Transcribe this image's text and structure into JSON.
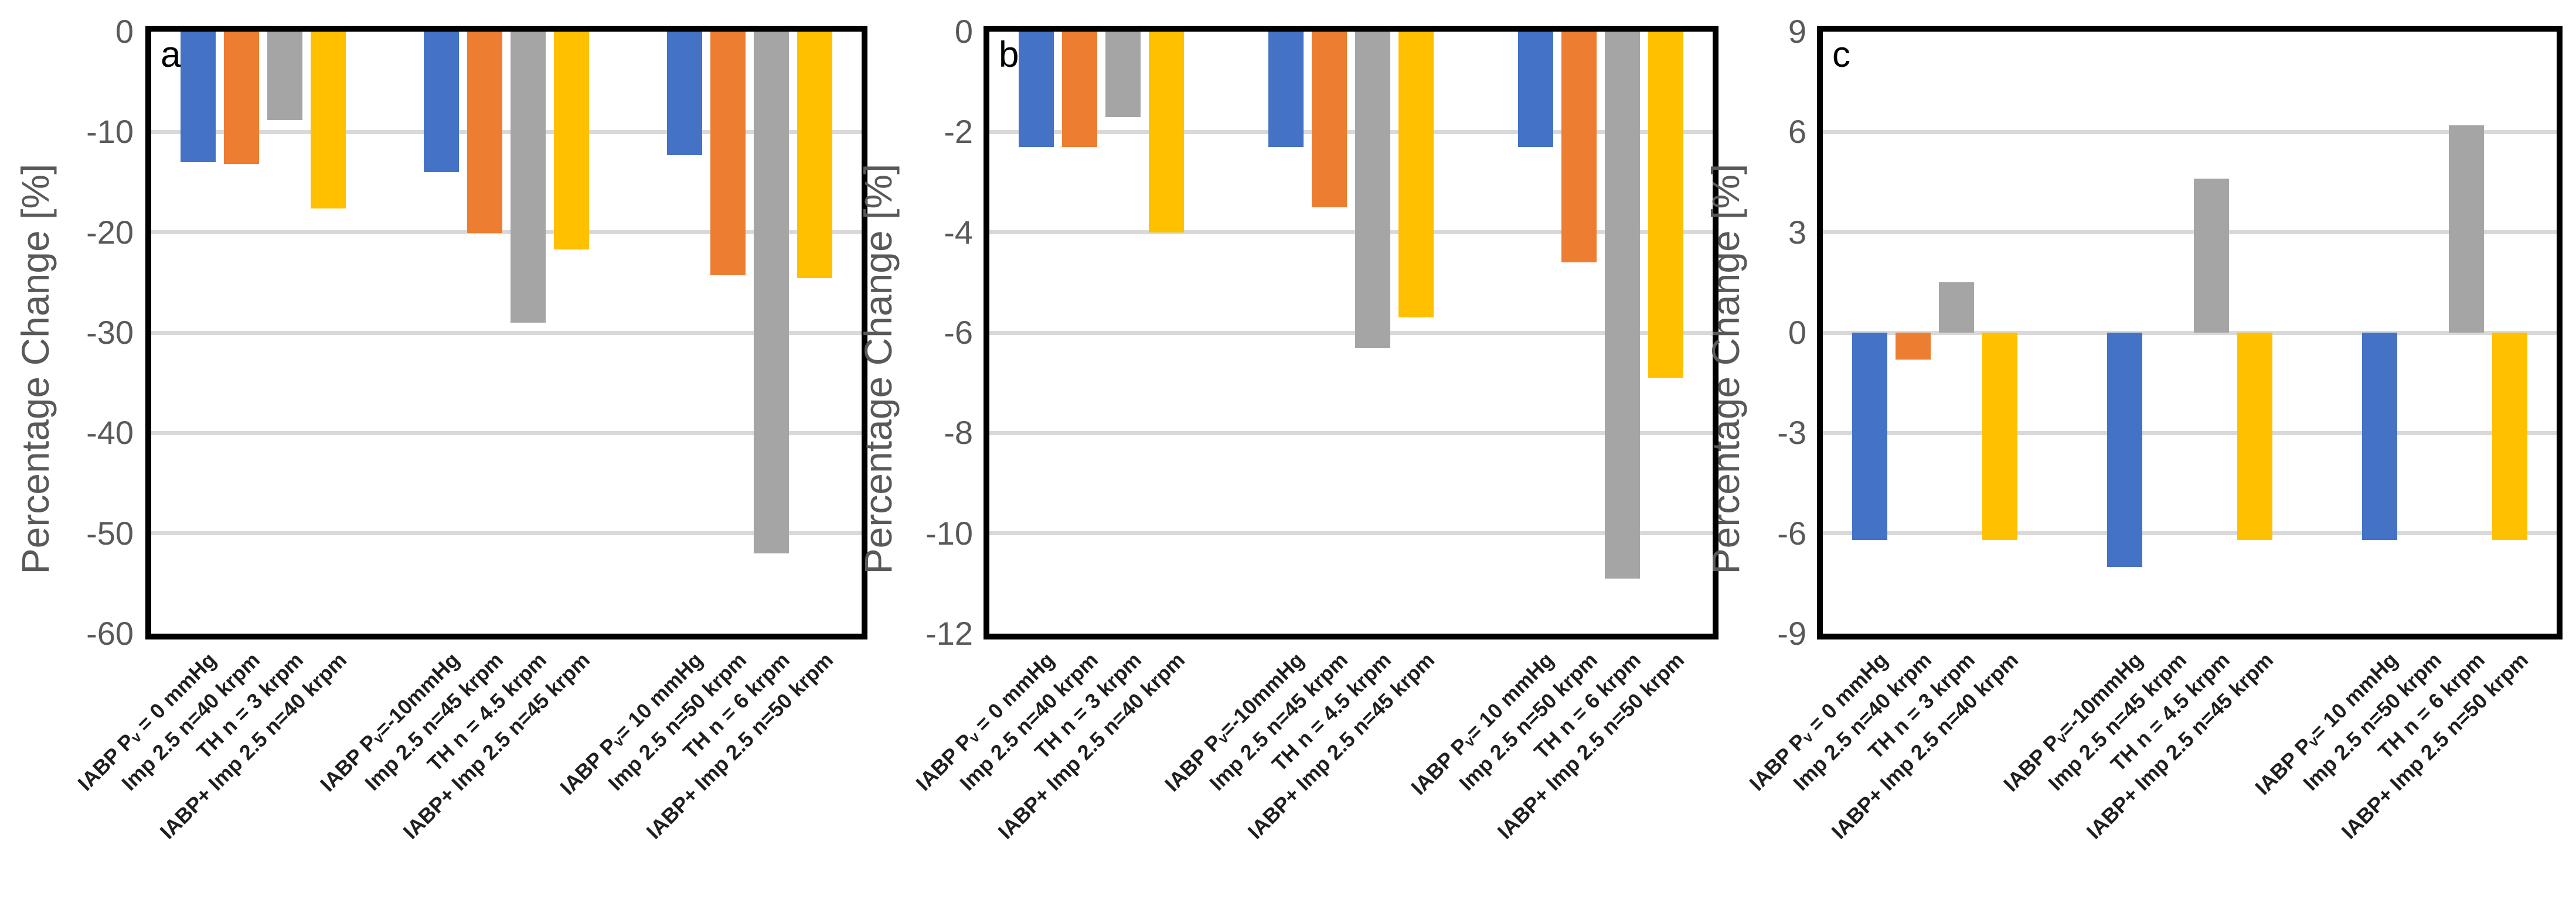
{
  "figure": {
    "ylabel": "Percentage Change [%]",
    "series_colors": [
      "#4472C4",
      "#ED7D31",
      "#A5A5A5",
      "#FFC000"
    ],
    "series_color_names": [
      "blue",
      "orange",
      "gray",
      "yellow"
    ],
    "gridline_color": "#D9D9D9",
    "axis_text_color": "#595959",
    "category_text_color": "#1f1f1f",
    "border_color": "#000000"
  },
  "chart_data": [
    {
      "type": "bar",
      "panel": "a",
      "ylabel": "Percentage Change [%]",
      "ylim": [
        -60,
        0
      ],
      "yticks": [
        0,
        -10,
        -20,
        -30,
        -40,
        -50,
        -60
      ],
      "grid": true,
      "legend": "none",
      "group_size": 4,
      "categories": [
        "IABP Pᵥ = 0 mmHg",
        "Imp 2.5 n=40 krpm",
        "TH n = 3 krpm",
        "IABP+ Imp 2.5 n=40 krpm",
        "IABP Pᵥ=-10mmHg",
        "Imp 2.5 n=45 krpm",
        "TH n = 4.5 krpm",
        "IABP+ Imp 2.5 n=45 krpm",
        "IABP Pᵥ= 10 mmHg",
        "Imp 2.5 n=50 krpm",
        "TH n = 6 krpm",
        "IABP+ Imp 2.5 n=50 krpm"
      ],
      "values": [
        -13.0,
        -13.2,
        -8.8,
        -17.6,
        -14.0,
        -20.1,
        -29.0,
        -21.7,
        -12.3,
        -24.3,
        -52.0,
        -24.6
      ]
    },
    {
      "type": "bar",
      "panel": "b",
      "ylabel": "Percentage Change [%]",
      "ylim": [
        -12,
        0
      ],
      "yticks": [
        0,
        -2,
        -4,
        -6,
        -8,
        -10,
        -12
      ],
      "grid": true,
      "legend": "none",
      "group_size": 4,
      "categories": [
        "IABP Pᵥ = 0 mmHg",
        "Imp 2.5 n=40 krpm",
        "TH n = 3 krpm",
        "IABP+ Imp 2.5 n=40 krpm",
        "IABP Pᵥ=-10mmHg",
        "Imp 2.5 n=45 krpm",
        "TH n = 4.5 krpm",
        "IABP+ Imp 2.5 n=45 krpm",
        "IABP Pᵥ= 10 mmHg",
        "Imp 2.5 n=50 krpm",
        "TH n = 6 krpm",
        "IABP+ Imp 2.5 n=50 krpm"
      ],
      "values": [
        -2.3,
        -2.3,
        -1.7,
        -4.0,
        -2.3,
        -3.5,
        -6.3,
        -5.7,
        -2.3,
        -4.6,
        -10.9,
        -6.9
      ]
    },
    {
      "type": "bar",
      "panel": "c",
      "ylabel": "Percentage Change [%]",
      "ylim": [
        -9,
        9
      ],
      "yticks": [
        9,
        6,
        3,
        0,
        -3,
        -6,
        -9
      ],
      "grid": true,
      "legend": "none",
      "group_size": 4,
      "categories": [
        "IABP Pᵥ = 0 mmHg",
        "Imp 2.5 n=40 krpm",
        "TH n = 3 krpm",
        "IABP+ Imp 2.5 n=40 krpm",
        "IABP Pᵥ=-10mmHg",
        "Imp 2.5 n=45 krpm",
        "TH n = 4.5 krpm",
        "IABP+ Imp 2.5 n=45 krpm",
        "IABP Pᵥ= 10 mmHg",
        "Imp 2.5 n=50 krpm",
        "TH n = 6 krpm",
        "IABP+ Imp 2.5 n=50 krpm"
      ],
      "values": [
        -6.2,
        -0.8,
        1.5,
        -6.2,
        -7.0,
        0,
        4.6,
        -6.2,
        -6.2,
        0,
        6.2,
        -6.2
      ]
    }
  ]
}
